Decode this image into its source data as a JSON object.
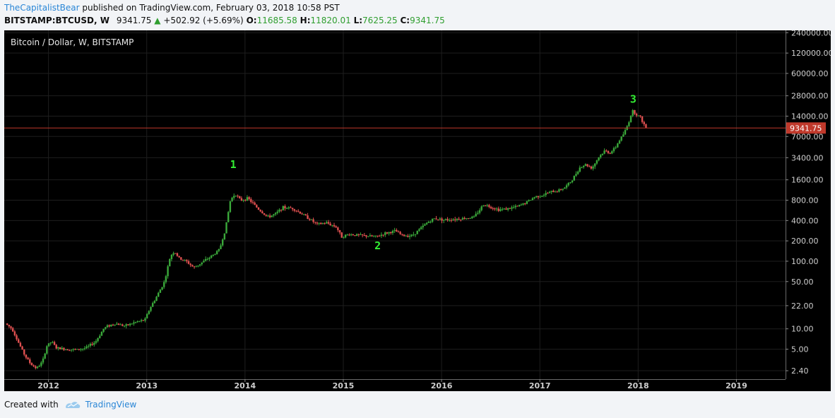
{
  "header": {
    "author": "TheCapitalistBear",
    "published_text": " published on TradingView.com, February 03, 2018 10:58 PST",
    "symbol": "BITSTAMP:BTCUSD, W",
    "last": "9341.75",
    "change": "+502.92 (+5.69%)",
    "o_label": "O:",
    "o_value": "11685.58",
    "h_label": "H:",
    "h_value": "11820.01",
    "l_label": "L:",
    "l_value": "7625.25",
    "c_label": "C:",
    "c_value": "9341.75"
  },
  "footer": {
    "created_with": "Created with",
    "brand": "TradingView"
  },
  "colors": {
    "background": "#000000",
    "up": "#3aa83a",
    "down": "#e05050",
    "annotation": "#33ee33",
    "price_line": "#c0392b",
    "price_badge": "#c0392b"
  },
  "chart_data": {
    "type": "candlestick",
    "title": "Bitcoin / Dollar, W, BITSTAMP",
    "yscale": "log",
    "ylim": [
      1.8,
      260000
    ],
    "xlim": [
      2011.55,
      2019.5
    ],
    "y_ticks": [
      "240000.00",
      "120000.00",
      "60000.00",
      "28000.00",
      "14000.00",
      "7000.00",
      "3400.00",
      "1600.00",
      "800.00",
      "400.00",
      "200.00",
      "100.00",
      "50.00",
      "22.00",
      "10.00",
      "5.00",
      "2.40"
    ],
    "y_tick_values": [
      240000,
      120000,
      60000,
      28000,
      14000,
      7000,
      3400,
      1600,
      800,
      400,
      200,
      100,
      50,
      22,
      10,
      5,
      2.4
    ],
    "x_ticks": [
      "2012",
      "2013",
      "2014",
      "2015",
      "2016",
      "2017",
      "2018",
      "2019"
    ],
    "x_tick_values": [
      2012,
      2013,
      2014,
      2015,
      2016,
      2017,
      2018,
      2019
    ],
    "current_price": 9341.75,
    "current_price_label": "9341.75",
    "grid": true,
    "annotations": [
      {
        "text": "1",
        "x": 2013.88,
        "y": 2400
      },
      {
        "text": "2",
        "x": 2015.35,
        "y": 150
      },
      {
        "text": "3",
        "x": 2017.95,
        "y": 22000
      }
    ],
    "price_path": [
      [
        2011.58,
        12
      ],
      [
        2011.65,
        10
      ],
      [
        2011.72,
        6
      ],
      [
        2011.78,
        4
      ],
      [
        2011.84,
        3
      ],
      [
        2011.9,
        2.6
      ],
      [
        2011.96,
        3.3
      ],
      [
        2012.0,
        5.5
      ],
      [
        2012.05,
        6.5
      ],
      [
        2012.1,
        5.2
      ],
      [
        2012.2,
        5
      ],
      [
        2012.3,
        4.9
      ],
      [
        2012.4,
        5.2
      ],
      [
        2012.5,
        6.5
      ],
      [
        2012.58,
        10
      ],
      [
        2012.62,
        11
      ],
      [
        2012.7,
        12
      ],
      [
        2012.8,
        11
      ],
      [
        2012.9,
        12.5
      ],
      [
        2013.0,
        13.5
      ],
      [
        2013.05,
        20
      ],
      [
        2013.12,
        30
      ],
      [
        2013.2,
        50
      ],
      [
        2013.26,
        120
      ],
      [
        2013.3,
        140
      ],
      [
        2013.35,
        110
      ],
      [
        2013.42,
        100
      ],
      [
        2013.5,
        80
      ],
      [
        2013.6,
        100
      ],
      [
        2013.7,
        125
      ],
      [
        2013.76,
        150
      ],
      [
        2013.82,
        300
      ],
      [
        2013.87,
        800
      ],
      [
        2013.92,
        1000
      ],
      [
        2013.97,
        800
      ],
      [
        2014.05,
        850
      ],
      [
        2014.15,
        600
      ],
      [
        2014.25,
        450
      ],
      [
        2014.33,
        500
      ],
      [
        2014.4,
        620
      ],
      [
        2014.5,
        610
      ],
      [
        2014.6,
        500
      ],
      [
        2014.68,
        420
      ],
      [
        2014.75,
        350
      ],
      [
        2014.85,
        370
      ],
      [
        2014.95,
        320
      ],
      [
        2015.0,
        230
      ],
      [
        2015.08,
        250
      ],
      [
        2015.2,
        240
      ],
      [
        2015.35,
        230
      ],
      [
        2015.45,
        260
      ],
      [
        2015.55,
        280
      ],
      [
        2015.62,
        240
      ],
      [
        2015.72,
        240
      ],
      [
        2015.8,
        300
      ],
      [
        2015.88,
        380
      ],
      [
        2015.95,
        430
      ],
      [
        2016.05,
        410
      ],
      [
        2016.15,
        420
      ],
      [
        2016.25,
        430
      ],
      [
        2016.35,
        450
      ],
      [
        2016.45,
        700
      ],
      [
        2016.5,
        650
      ],
      [
        2016.6,
        580
      ],
      [
        2016.7,
        600
      ],
      [
        2016.8,
        650
      ],
      [
        2016.88,
        740
      ],
      [
        2016.97,
        900
      ],
      [
        2017.05,
        950
      ],
      [
        2017.12,
        1050
      ],
      [
        2017.2,
        1100
      ],
      [
        2017.28,
        1250
      ],
      [
        2017.35,
        1600
      ],
      [
        2017.42,
        2400
      ],
      [
        2017.48,
        2700
      ],
      [
        2017.55,
        2400
      ],
      [
        2017.62,
        3500
      ],
      [
        2017.68,
        4300
      ],
      [
        2017.73,
        4000
      ],
      [
        2017.78,
        4600
      ],
      [
        2017.83,
        6200
      ],
      [
        2017.88,
        8000
      ],
      [
        2017.92,
        11000
      ],
      [
        2017.96,
        17000
      ],
      [
        2018.0,
        15000
      ],
      [
        2018.04,
        13500
      ],
      [
        2018.08,
        10500
      ],
      [
        2018.09,
        9341.75
      ]
    ]
  }
}
